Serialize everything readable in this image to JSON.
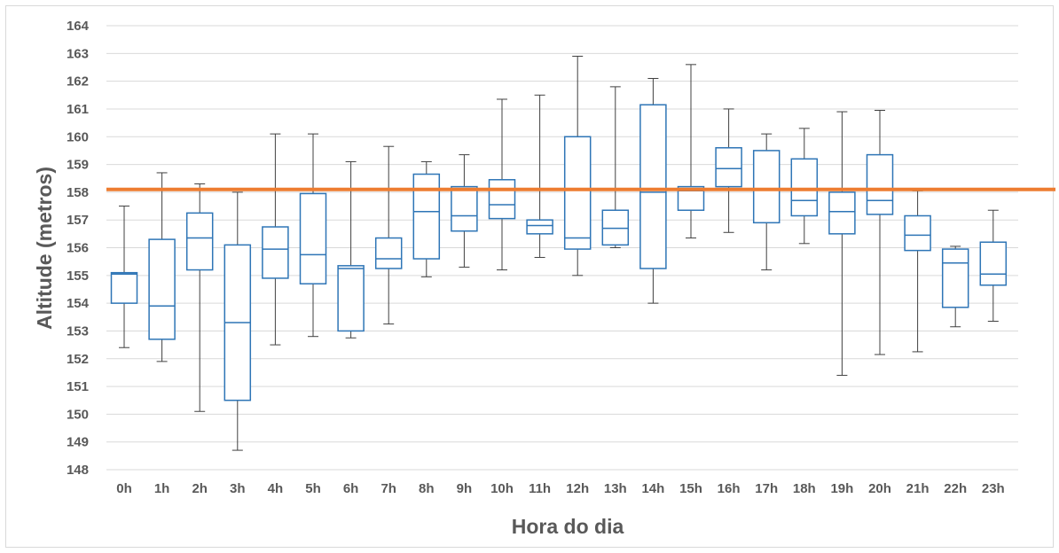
{
  "chart_data": {
    "type": "boxplot",
    "xlabel": "Hora do dia",
    "ylabel": "Altitude (metros)",
    "ylim": [
      148,
      164
    ],
    "yticks": [
      "148",
      "149",
      "150",
      "151",
      "152",
      "153",
      "154",
      "155",
      "156",
      "157",
      "158",
      "159",
      "160",
      "161",
      "162",
      "163",
      "164"
    ],
    "grid": true,
    "categories": [
      "0h",
      "1h",
      "2h",
      "3h",
      "4h",
      "5h",
      "6h",
      "7h",
      "8h",
      "9h",
      "10h",
      "11h",
      "12h",
      "13h",
      "14h",
      "15h",
      "16h",
      "17h",
      "18h",
      "19h",
      "20h",
      "21h",
      "22h",
      "23h"
    ],
    "boxes": [
      {
        "min": 152.4,
        "q1": 154.0,
        "median": 155.05,
        "q3": 155.1,
        "max": 157.5
      },
      {
        "min": 151.9,
        "q1": 152.7,
        "median": 153.9,
        "q3": 156.3,
        "max": 158.7
      },
      {
        "min": 150.1,
        "q1": 155.2,
        "median": 156.35,
        "q3": 157.25,
        "max": 158.3
      },
      {
        "min": 148.7,
        "q1": 150.5,
        "median": 153.3,
        "q3": 156.1,
        "max": 158.0
      },
      {
        "min": 152.5,
        "q1": 154.9,
        "median": 155.95,
        "q3": 156.75,
        "max": 160.1
      },
      {
        "min": 152.8,
        "q1": 154.7,
        "median": 155.75,
        "q3": 157.95,
        "max": 160.1
      },
      {
        "min": 152.75,
        "q1": 153.0,
        "median": 155.25,
        "q3": 155.35,
        "max": 159.1
      },
      {
        "min": 153.25,
        "q1": 155.25,
        "median": 155.6,
        "q3": 156.35,
        "max": 159.65
      },
      {
        "min": 154.95,
        "q1": 155.6,
        "median": 157.3,
        "q3": 158.65,
        "max": 159.1
      },
      {
        "min": 155.3,
        "q1": 156.6,
        "median": 157.15,
        "q3": 158.2,
        "max": 159.35
      },
      {
        "min": 155.2,
        "q1": 157.05,
        "median": 157.55,
        "q3": 158.45,
        "max": 161.35
      },
      {
        "min": 155.65,
        "q1": 156.5,
        "median": 156.8,
        "q3": 157.0,
        "max": 161.5
      },
      {
        "min": 155.0,
        "q1": 155.95,
        "median": 156.35,
        "q3": 160.0,
        "max": 162.9
      },
      {
        "min": 156.0,
        "q1": 156.1,
        "median": 156.7,
        "q3": 157.35,
        "max": 161.8
      },
      {
        "min": 154.0,
        "q1": 155.25,
        "median": 158.0,
        "q3": 161.15,
        "max": 162.1
      },
      {
        "min": 156.35,
        "q1": 157.35,
        "median": 158.05,
        "q3": 158.2,
        "max": 162.6
      },
      {
        "min": 156.55,
        "q1": 158.2,
        "median": 158.85,
        "q3": 159.6,
        "max": 161.0
      },
      {
        "min": 155.2,
        "q1": 156.9,
        "median": 158.1,
        "q3": 159.5,
        "max": 160.1
      },
      {
        "min": 156.15,
        "q1": 157.15,
        "median": 157.7,
        "q3": 159.2,
        "max": 160.3
      },
      {
        "min": 151.4,
        "q1": 156.5,
        "median": 157.3,
        "q3": 158.0,
        "max": 160.9
      },
      {
        "min": 152.15,
        "q1": 157.2,
        "median": 157.7,
        "q3": 159.35,
        "max": 160.95
      },
      {
        "min": 152.25,
        "q1": 155.9,
        "median": 156.45,
        "q3": 157.15,
        "max": 158.05
      },
      {
        "min": 153.15,
        "q1": 153.85,
        "median": 155.45,
        "q3": 155.95,
        "max": 156.05
      },
      {
        "min": 153.35,
        "q1": 154.65,
        "median": 155.05,
        "q3": 156.2,
        "max": 157.35
      }
    ],
    "reference_line": {
      "value": 158.1
    },
    "colors": {
      "box": "#2e75b6",
      "whisker": "#404040",
      "reference": "#ed7d31",
      "grid": "#d9d9d9",
      "text": "#595959"
    }
  }
}
